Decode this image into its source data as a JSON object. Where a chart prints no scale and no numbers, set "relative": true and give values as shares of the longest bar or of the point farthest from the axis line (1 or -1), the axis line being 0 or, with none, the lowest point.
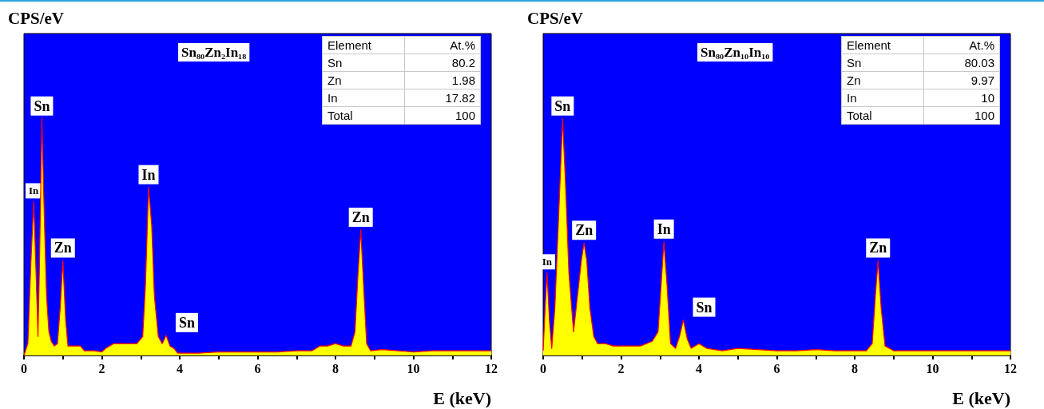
{
  "chart_data": [
    {
      "type": "area",
      "title": "Sn₈₀Zn₂In₁₈",
      "xlabel": "E (keV)",
      "ylabel": "CPS/eV",
      "relative": true,
      "xlim": [
        0,
        12
      ],
      "xticks": [
        0,
        2,
        4,
        6,
        8,
        10,
        12
      ],
      "series": [
        {
          "color": "#ffff00",
          "x": [
            0,
            0.1,
            0.18,
            0.25,
            0.32,
            0.36,
            0.4,
            0.46,
            0.52,
            0.58,
            0.64,
            0.7,
            0.78,
            0.86,
            0.93,
            1.0,
            1.07,
            1.13,
            1.3,
            1.45,
            1.55,
            1.8,
            2.0,
            2.1,
            2.3,
            2.6,
            2.9,
            3.05,
            3.12,
            3.2,
            3.28,
            3.35,
            3.45,
            3.55,
            3.65,
            3.75,
            3.85,
            3.95,
            4.5,
            5.0,
            5.5,
            6.0,
            6.5,
            7.0,
            7.4,
            7.6,
            7.8,
            8.0,
            8.2,
            8.4,
            8.5,
            8.58,
            8.65,
            8.72,
            8.8,
            8.9,
            9.2,
            9.6,
            10.0,
            10.5,
            11.0,
            11.5,
            12.0
          ],
          "values": [
            0,
            0.05,
            0.4,
            0.65,
            0.3,
            0.08,
            0.4,
            1.0,
            0.6,
            0.25,
            0.1,
            0.06,
            0.04,
            0.05,
            0.2,
            0.4,
            0.15,
            0.04,
            0.04,
            0.04,
            0.02,
            0.02,
            0.015,
            0.03,
            0.05,
            0.05,
            0.05,
            0.08,
            0.3,
            0.71,
            0.55,
            0.25,
            0.08,
            0.05,
            0.085,
            0.04,
            0.03,
            0.01,
            0.01,
            0.015,
            0.015,
            0.015,
            0.015,
            0.02,
            0.02,
            0.04,
            0.04,
            0.05,
            0.04,
            0.04,
            0.1,
            0.35,
            0.53,
            0.3,
            0.05,
            0.02,
            0.025,
            0.02,
            0.015,
            0.02,
            0.02,
            0.02,
            0.02
          ]
        }
      ],
      "annotations": [
        {
          "text": "In",
          "x": 0.25,
          "y": 0.65
        },
        {
          "text": "Sn",
          "x": 0.46,
          "y": 1.0
        },
        {
          "text": "Zn",
          "x": 1.0,
          "y": 0.4
        },
        {
          "text": "In",
          "x": 3.2,
          "y": 0.71
        },
        {
          "text": "Sn",
          "x": 3.65,
          "y": 0.085
        },
        {
          "text": "Zn",
          "x": 8.65,
          "y": 0.53
        },
        "Element",
        "At.%",
        "Sn",
        "80.2",
        "Zn",
        "1.98",
        "In",
        "17.82",
        "Total",
        "100"
      ]
    },
    {
      "type": "area",
      "title": "Sn₈₀Zn₁₀In₁₀",
      "xlabel": "E (keV)",
      "ylabel": "CPS/eV",
      "relative": true,
      "xlim": [
        0,
        12
      ],
      "xticks": [
        0,
        2,
        4,
        6,
        8,
        10,
        12
      ],
      "series": [
        {
          "color": "#ffff00",
          "x": [
            0,
            0.05,
            0.1,
            0.16,
            0.22,
            0.3,
            0.4,
            0.5,
            0.58,
            0.66,
            0.78,
            0.88,
            0.98,
            1.05,
            1.12,
            1.2,
            1.3,
            1.4,
            1.6,
            1.8,
            2.0,
            2.2,
            2.5,
            2.8,
            2.95,
            3.03,
            3.1,
            3.18,
            3.27,
            3.4,
            3.5,
            3.6,
            3.7,
            3.8,
            4.0,
            4.2,
            4.6,
            5.0,
            5.5,
            6.0,
            6.5,
            7.0,
            7.5,
            8.0,
            8.3,
            8.45,
            8.53,
            8.6,
            8.68,
            8.78,
            9.0,
            9.5,
            10.0,
            10.5,
            11.0,
            11.5,
            12.0
          ],
          "values": [
            0.02,
            0.2,
            0.35,
            0.15,
            0.03,
            0.2,
            0.6,
            1.0,
            0.7,
            0.35,
            0.1,
            0.25,
            0.4,
            0.475,
            0.4,
            0.2,
            0.08,
            0.05,
            0.05,
            0.04,
            0.04,
            0.04,
            0.04,
            0.06,
            0.1,
            0.3,
            0.48,
            0.3,
            0.05,
            0.03,
            0.08,
            0.15,
            0.07,
            0.03,
            0.05,
            0.03,
            0.02,
            0.03,
            0.025,
            0.02,
            0.02,
            0.025,
            0.02,
            0.02,
            0.02,
            0.05,
            0.25,
            0.4,
            0.2,
            0.04,
            0.02,
            0.02,
            0.02,
            0.02,
            0.02,
            0.02,
            0.02
          ]
        }
      ],
      "annotations": [
        {
          "text": "In",
          "x": 0.1,
          "y": 0.35
        },
        {
          "text": "Sn",
          "x": 0.5,
          "y": 1.0
        },
        {
          "text": "Zn",
          "x": 1.05,
          "y": 0.475
        },
        {
          "text": "In",
          "x": 3.1,
          "y": 0.48
        },
        {
          "text": "Sn",
          "x": 3.6,
          "y": 0.15
        },
        {
          "text": "Zn",
          "x": 8.6,
          "y": 0.4
        },
        "Element",
        "At.%",
        "Sn",
        "80.03",
        "Zn",
        "9.97",
        "In",
        "10",
        "Total",
        "100"
      ]
    }
  ]
}
